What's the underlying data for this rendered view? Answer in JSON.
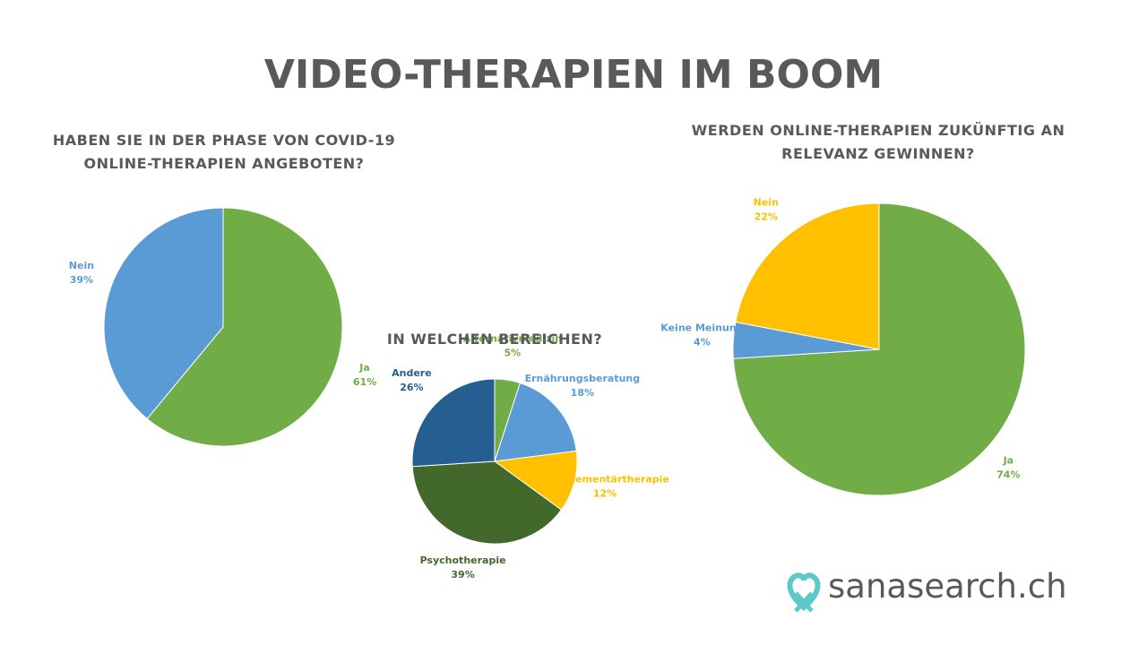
{
  "title": "VIDEO-THERAPIEN IM BOOM",
  "logo": "sanasearch.ch",
  "chart_data": [
    {
      "type": "pie",
      "title": "HABEN SIE IN DER PHASE VON COVID-19  ONLINE-THERAPIEN ANGEBOTEN?",
      "categories": [
        "Ja",
        "Nein"
      ],
      "values": [
        61,
        39
      ],
      "value_labels": [
        "61%",
        "39%"
      ],
      "colors": [
        "#70ad47",
        "#5b9bd5"
      ]
    },
    {
      "type": "pie",
      "title": "IN WELCHEN BEREICHEN?",
      "categories": [
        "Alternativmedizin",
        "Ernährungsberatung",
        "Komplementärtherapie",
        "Psychotherapie",
        "Andere"
      ],
      "values": [
        5,
        18,
        12,
        39,
        26
      ],
      "value_labels": [
        "5%",
        "18%",
        "12%",
        "39%",
        "26%"
      ],
      "colors": [
        "#70ad47",
        "#5b9bd5",
        "#ffc000",
        "#43682b",
        "#255e91"
      ]
    },
    {
      "type": "pie",
      "title": "WERDEN ONLINE-THERAPIEN ZUKÜNFTIG AN RELEVANZ GEWINNEN?",
      "categories": [
        "Ja",
        "Keine Meinung",
        "Nein"
      ],
      "values": [
        74,
        4,
        22
      ],
      "value_labels": [
        "74%",
        "4%",
        "22%"
      ],
      "colors": [
        "#70ad47",
        "#5b9bd5",
        "#ffc000"
      ]
    }
  ]
}
